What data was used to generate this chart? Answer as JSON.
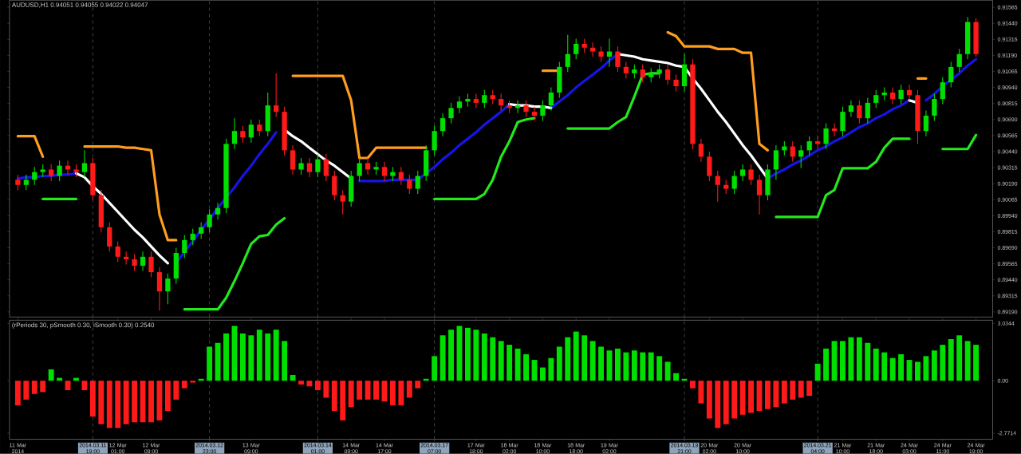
{
  "chart_data": [
    {
      "type": "candlestick",
      "title": "AUDUSD,H1 0.94051 0.94055 0.94022 0.94047",
      "categories": [
        "11 Mar 2014",
        null,
        null,
        null,
        null,
        null,
        null,
        null,
        null,
        "2014.03.11 19:00",
        null,
        null,
        "12 Mar 01:00",
        null,
        null,
        null,
        "12 Mar 09:00",
        null,
        null,
        null,
        null,
        null,
        null,
        "2014.03.12 23:00",
        null,
        null,
        null,
        null,
        "13 Mar 09:00",
        null,
        null,
        null,
        null,
        null,
        null,
        null,
        "2014.03.14 01:00",
        null,
        null,
        null,
        "14 Mar 09:00",
        null,
        null,
        null,
        "14 Mar 17:00",
        null,
        null,
        null,
        null,
        null,
        "2014.03.17 07:00",
        null,
        null,
        null,
        null,
        "17 Mar 18:00",
        null,
        null,
        null,
        "18 Mar 02:00",
        null,
        null,
        null,
        "18 Mar 10:00",
        null,
        null,
        null,
        "18 Mar 18:00",
        null,
        null,
        null,
        "19 Mar 02:00",
        null,
        null,
        null,
        null,
        null,
        null,
        null,
        null,
        "2014.03.19 21:00",
        null,
        null,
        "20 Mar 02:00",
        null,
        null,
        null,
        "20 Mar 10:00",
        null,
        null,
        null,
        null,
        null,
        null,
        null,
        null,
        "2014.03.21 04:00",
        null,
        null,
        "21 Mar 10:00",
        null,
        null,
        null,
        "21 Mar 18:00",
        null,
        null,
        null,
        "24 Mar 03:00",
        null,
        null,
        null,
        "24 Mar 11:00",
        null,
        null,
        null,
        "24 Mar 19:00"
      ],
      "ohlc": [
        [
          0.9022,
          0.9026,
          0.9014,
          0.9018
        ],
        [
          0.9018,
          0.9026,
          0.9014,
          0.9022
        ],
        [
          0.9022,
          0.9032,
          0.9018,
          0.9028
        ],
        [
          0.9028,
          0.9034,
          0.9024,
          0.903
        ],
        [
          0.903,
          0.9034,
          0.9021,
          0.9025
        ],
        [
          0.9025,
          0.9037,
          0.9021,
          0.9033
        ],
        [
          0.9033,
          0.9037,
          0.9026,
          0.903
        ],
        [
          0.903,
          0.9034,
          0.9024,
          0.9028
        ],
        [
          0.9028,
          0.9045,
          0.9024,
          0.9035
        ],
        [
          0.9035,
          0.9039,
          0.9006,
          0.901
        ],
        [
          0.901,
          0.9014,
          0.8981,
          0.8985
        ],
        [
          0.8985,
          0.8989,
          0.8966,
          0.897
        ],
        [
          0.897,
          0.8974,
          0.8958,
          0.8962
        ],
        [
          0.8962,
          0.8966,
          0.8956,
          0.896
        ],
        [
          0.896,
          0.8964,
          0.8951,
          0.8955
        ],
        [
          0.8955,
          0.8966,
          0.8951,
          0.8962
        ],
        [
          0.8962,
          0.8966,
          0.8946,
          0.895
        ],
        [
          0.895,
          0.8954,
          0.892,
          0.8935
        ],
        [
          0.8935,
          0.8949,
          0.8925,
          0.8945
        ],
        [
          0.8945,
          0.8969,
          0.8941,
          0.8965
        ],
        [
          0.8965,
          0.8979,
          0.8961,
          0.8975
        ],
        [
          0.8975,
          0.8984,
          0.8971,
          0.898
        ],
        [
          0.898,
          0.8989,
          0.8976,
          0.8985
        ],
        [
          0.8985,
          0.8999,
          0.8981,
          0.8995
        ],
        [
          0.8995,
          0.9004,
          0.8991,
          0.9
        ],
        [
          0.9,
          0.9054,
          0.8996,
          0.905
        ],
        [
          0.905,
          0.907,
          0.9046,
          0.906
        ],
        [
          0.906,
          0.9064,
          0.9051,
          0.9055
        ],
        [
          0.9055,
          0.9069,
          0.9051,
          0.9065
        ],
        [
          0.9065,
          0.9069,
          0.9056,
          0.906
        ],
        [
          0.906,
          0.909,
          0.9056,
          0.908
        ],
        [
          0.908,
          0.9105,
          0.9071,
          0.9075
        ],
        [
          0.9075,
          0.9079,
          0.9041,
          0.9045
        ],
        [
          0.9045,
          0.9049,
          0.9026,
          0.903
        ],
        [
          0.903,
          0.9039,
          0.9026,
          0.9035
        ],
        [
          0.9035,
          0.9039,
          0.9024,
          0.9028
        ],
        [
          0.9028,
          0.9042,
          0.9024,
          0.9038
        ],
        [
          0.9038,
          0.9042,
          0.9021,
          0.9025
        ],
        [
          0.9025,
          0.9029,
          0.9006,
          0.901
        ],
        [
          0.901,
          0.9014,
          0.8995,
          0.9005
        ],
        [
          0.9005,
          0.9029,
          0.9001,
          0.9025
        ],
        [
          0.9025,
          0.9039,
          0.9021,
          0.9035
        ],
        [
          0.9035,
          0.9039,
          0.9026,
          0.903
        ],
        [
          0.903,
          0.9036,
          0.9026,
          0.9032
        ],
        [
          0.9032,
          0.9036,
          0.9021,
          0.9025
        ],
        [
          0.9025,
          0.9032,
          0.9021,
          0.9028
        ],
        [
          0.9028,
          0.9032,
          0.9018,
          0.9022
        ],
        [
          0.9022,
          0.9026,
          0.9011,
          0.9015
        ],
        [
          0.9015,
          0.9029,
          0.9011,
          0.9025
        ],
        [
          0.9025,
          0.9049,
          0.9021,
          0.9045
        ],
        [
          0.9045,
          0.9064,
          0.9041,
          0.906
        ],
        [
          0.906,
          0.9074,
          0.9056,
          0.907
        ],
        [
          0.907,
          0.9082,
          0.9066,
          0.9078
        ],
        [
          0.9078,
          0.9087,
          0.9074,
          0.9083
        ],
        [
          0.9083,
          0.9089,
          0.9079,
          0.9085
        ],
        [
          0.9085,
          0.9089,
          0.9078,
          0.9082
        ],
        [
          0.9082,
          0.9092,
          0.9078,
          0.9088
        ],
        [
          0.9088,
          0.9092,
          0.9081,
          0.9085
        ],
        [
          0.9085,
          0.9089,
          0.9076,
          0.908
        ],
        [
          0.908,
          0.9084,
          0.9074,
          0.9078
        ],
        [
          0.9078,
          0.9084,
          0.9074,
          0.908
        ],
        [
          0.908,
          0.9084,
          0.9071,
          0.9075
        ],
        [
          0.9075,
          0.9079,
          0.9068,
          0.9072
        ],
        [
          0.9072,
          0.9084,
          0.9068,
          0.908
        ],
        [
          0.908,
          0.9094,
          0.9076,
          0.909
        ],
        [
          0.909,
          0.9114,
          0.9086,
          0.911
        ],
        [
          0.911,
          0.9135,
          0.9106,
          0.912
        ],
        [
          0.912,
          0.9132,
          0.9116,
          0.9128
        ],
        [
          0.9128,
          0.9132,
          0.9121,
          0.9125
        ],
        [
          0.9125,
          0.9129,
          0.9118,
          0.9122
        ],
        [
          0.9122,
          0.9126,
          0.9114,
          0.9118
        ],
        [
          0.9118,
          0.9132,
          0.911,
          0.9122
        ],
        [
          0.9122,
          0.9126,
          0.9106,
          0.911
        ],
        [
          0.911,
          0.9114,
          0.9101,
          0.9105
        ],
        [
          0.9105,
          0.9112,
          0.9101,
          0.9108
        ],
        [
          0.9108,
          0.9112,
          0.9098,
          0.9102
        ],
        [
          0.9102,
          0.9109,
          0.9098,
          0.9105
        ],
        [
          0.9105,
          0.9112,
          0.9101,
          0.9108
        ],
        [
          0.9108,
          0.9112,
          0.9096,
          0.91
        ],
        [
          0.91,
          0.9104,
          0.9091,
          0.9095
        ],
        [
          0.9095,
          0.912,
          0.9091,
          0.9112
        ],
        [
          0.9112,
          0.9116,
          0.9046,
          0.905
        ],
        [
          0.905,
          0.9054,
          0.9036,
          0.904
        ],
        [
          0.904,
          0.9044,
          0.9021,
          0.9025
        ],
        [
          0.9025,
          0.9029,
          0.9005,
          0.9018
        ],
        [
          0.9018,
          0.9022,
          0.9011,
          0.9015
        ],
        [
          0.9015,
          0.9029,
          0.9011,
          0.9025
        ],
        [
          0.9025,
          0.9034,
          0.9021,
          0.903
        ],
        [
          0.903,
          0.9034,
          0.9018,
          0.9022
        ],
        [
          0.9022,
          0.9026,
          0.8995,
          0.901
        ],
        [
          0.901,
          0.9034,
          0.9006,
          0.903
        ],
        [
          0.903,
          0.9049,
          0.9022,
          0.9045
        ],
        [
          0.9045,
          0.9052,
          0.9041,
          0.9048
        ],
        [
          0.9048,
          0.9052,
          0.9036,
          0.904
        ],
        [
          0.904,
          0.9049,
          0.9031,
          0.9045
        ],
        [
          0.9045,
          0.9056,
          0.9041,
          0.9052
        ],
        [
          0.9052,
          0.9056,
          0.9046,
          0.905
        ],
        [
          0.905,
          0.9066,
          0.9046,
          0.9062
        ],
        [
          0.9062,
          0.9066,
          0.9056,
          0.906
        ],
        [
          0.906,
          0.9079,
          0.9056,
          0.9075
        ],
        [
          0.9075,
          0.9084,
          0.9071,
          0.908
        ],
        [
          0.908,
          0.9084,
          0.9066,
          0.907
        ],
        [
          0.907,
          0.9086,
          0.9066,
          0.9082
        ],
        [
          0.9082,
          0.9092,
          0.9078,
          0.9088
        ],
        [
          0.9088,
          0.9094,
          0.9084,
          0.909
        ],
        [
          0.909,
          0.9094,
          0.9081,
          0.9085
        ],
        [
          0.9085,
          0.9096,
          0.9081,
          0.9092
        ],
        [
          0.9092,
          0.9096,
          0.9084,
          0.9088
        ],
        [
          0.9088,
          0.9092,
          0.905,
          0.906
        ],
        [
          0.906,
          0.9076,
          0.9056,
          0.9072
        ],
        [
          0.9072,
          0.9089,
          0.9068,
          0.9085
        ],
        [
          0.9085,
          0.9102,
          0.9081,
          0.9098
        ],
        [
          0.9098,
          0.9114,
          0.9094,
          0.911
        ],
        [
          0.911,
          0.9124,
          0.9106,
          0.912
        ],
        [
          0.912,
          0.9149,
          0.9116,
          0.9145
        ],
        [
          0.9145,
          0.9148,
          0.9118,
          0.912
        ]
      ],
      "colors": [
        "#ff1a1a",
        "#00e000",
        "#00e000",
        "#00e000",
        "#ff1a1a",
        "#00e000",
        "#ff1a1a",
        "#ff1a1a",
        "#00e000",
        "#ff1a1a",
        "#ff1a1a",
        "#ff1a1a",
        "#ff1a1a",
        "#ff1a1a",
        "#ff1a1a",
        "#00e000",
        "#ff1a1a",
        "#ff1a1a",
        "#00e000",
        "#00e000",
        "#00e000",
        "#00e000",
        "#00e000",
        "#00e000",
        "#00e000",
        "#00e000",
        "#00e000",
        "#ff1a1a",
        "#00e000",
        "#ff1a1a",
        "#00e000",
        "#ff1a1a",
        "#ff1a1a",
        "#ff1a1a",
        "#00e000",
        "#ff1a1a",
        "#00e000",
        "#ff1a1a",
        "#ff1a1a",
        "#ff1a1a",
        "#00e000",
        "#00e000",
        "#ff1a1a",
        "#00e000",
        "#ff1a1a",
        "#00e000",
        "#ff1a1a",
        "#ff1a1a",
        "#00e000",
        "#00e000",
        "#00e000",
        "#00e000",
        "#00e000",
        "#00e000",
        "#00e000",
        "#ff1a1a",
        "#00e000",
        "#ff1a1a",
        "#ff1a1a",
        "#ff1a1a",
        "#00e000",
        "#ff1a1a",
        "#ff1a1a",
        "#00e000",
        "#00e000",
        "#00e000",
        "#00e000",
        "#00e000",
        "#ff1a1a",
        "#ff1a1a",
        "#ff1a1a",
        "#00e000",
        "#ff1a1a",
        "#ff1a1a",
        "#00e000",
        "#ff1a1a",
        "#00e000",
        "#00e000",
        "#ff1a1a",
        "#ff1a1a",
        "#00e000",
        "#ff1a1a",
        "#ff1a1a",
        "#ff1a1a",
        "#ff1a1a",
        "#ff1a1a",
        "#00e000",
        "#00e000",
        "#ff1a1a",
        "#ff1a1a",
        "#00e000",
        "#00e000",
        "#00e000",
        "#ff1a1a",
        "#00e000",
        "#00e000",
        "#ff1a1a",
        "#00e000",
        "#ff1a1a",
        "#00e000",
        "#00e000",
        "#ff1a1a",
        "#00e000",
        "#00e000",
        "#00e000",
        "#ff1a1a",
        "#00e000",
        "#ff1a1a",
        "#ff1a1a",
        "#00e000",
        "#00e000",
        "#00e000",
        "#00e000",
        "#00e000",
        "#00e000",
        "#ff1a1a"
      ],
      "series": [
        {
          "type": "line",
          "color": "#ff9d1e",
          "values": [
            0.9056,
            0.9056,
            0.9056,
            0.904,
            null,
            null,
            null,
            null,
            0.9048,
            0.9048,
            0.9048,
            0.9048,
            0.9048,
            0.9047,
            0.9047,
            0.9046,
            0.9045,
            0.8995,
            0.8975,
            0.8975,
            null,
            null,
            null,
            null,
            null,
            null,
            null,
            null,
            null,
            null,
            null,
            null,
            null,
            0.9103,
            0.9103,
            0.9103,
            0.9103,
            0.9103,
            0.9103,
            0.9103,
            0.9084,
            0.9039,
            0.9039,
            0.9047,
            0.9047,
            0.9047,
            0.9047,
            0.9047,
            0.9047,
            0.9047,
            null,
            null,
            null,
            null,
            null,
            null,
            null,
            null,
            null,
            null,
            null,
            null,
            null,
            0.9107,
            0.9107,
            0.9107,
            null,
            null,
            null,
            null,
            null,
            null,
            null,
            null,
            null,
            null,
            null,
            null,
            0.9137,
            0.9134,
            0.9126,
            0.9126,
            0.9126,
            0.9126,
            0.9124,
            0.9124,
            0.9124,
            0.9121,
            0.9121,
            0.905,
            0.9045,
            null,
            null,
            null,
            null,
            null,
            null,
            null,
            null,
            null,
            null,
            null,
            null,
            null,
            null,
            null,
            null,
            null,
            0.9101,
            0.9101,
            null,
            null,
            null,
            null,
            null,
            null
          ]
        },
        {
          "type": "line",
          "color": "#22e81c",
          "values": [
            null,
            null,
            null,
            0.9007,
            0.9007,
            0.9007,
            0.9007,
            0.9007,
            null,
            null,
            null,
            null,
            null,
            null,
            null,
            null,
            null,
            null,
            null,
            null,
            0.8921,
            0.8921,
            0.8921,
            0.8921,
            0.8921,
            0.893,
            0.8943,
            0.8957,
            0.8972,
            0.8978,
            0.8979,
            0.8987,
            0.8992,
            null,
            null,
            null,
            null,
            null,
            null,
            null,
            null,
            null,
            null,
            null,
            null,
            null,
            null,
            null,
            null,
            null,
            0.9007,
            0.9007,
            0.9007,
            0.9007,
            0.9007,
            0.9007,
            0.9011,
            0.9022,
            0.904,
            0.9052,
            0.9067,
            0.9069,
            0.907,
            null,
            null,
            null,
            0.9062,
            0.9062,
            0.9062,
            0.9062,
            0.9062,
            0.9062,
            0.9067,
            0.9071,
            0.9087,
            0.9104,
            0.9105,
            0.9105,
            null,
            null,
            null,
            null,
            null,
            null,
            null,
            null,
            null,
            null,
            null,
            null,
            null,
            0.8993,
            0.8993,
            0.8993,
            0.8993,
            0.8993,
            0.8993,
            0.901,
            0.9014,
            0.9031,
            0.9031,
            0.9031,
            0.9031,
            0.9036,
            0.9047,
            0.9054,
            0.9054,
            0.9054,
            null,
            null,
            null,
            0.9046,
            0.9046,
            0.9046,
            0.9046,
            0.9057
          ]
        },
        {
          "type": "line",
          "color": "#1515e6",
          "values": [
            0.9023,
            0.9024,
            0.9024,
            0.9025,
            0.9025,
            0.9026,
            0.9026,
            0.9027,
            null,
            null,
            null,
            null,
            null,
            null,
            null,
            null,
            null,
            null,
            null,
            0.8957,
            0.8966,
            0.8974,
            0.8983,
            0.8991,
            0.9,
            0.9008,
            0.9016,
            0.9025,
            0.9033,
            0.9042,
            0.905,
            0.9059,
            null,
            null,
            null,
            null,
            null,
            null,
            null,
            null,
            null,
            0.9021,
            0.9021,
            0.9021,
            0.9021,
            0.9022,
            0.9022,
            0.9022,
            0.9022,
            0.9027,
            0.9032,
            0.9038,
            0.9043,
            0.9049,
            0.9054,
            0.9059,
            0.9065,
            0.907,
            0.9075,
            0.9081,
            null,
            null,
            null,
            null,
            0.9078,
            0.9083,
            0.9088,
            0.9094,
            0.9099,
            0.9104,
            0.9109,
            0.9115,
            0.912,
            null,
            null,
            null,
            null,
            null,
            null,
            null,
            null,
            null,
            null,
            null,
            null,
            null,
            null,
            null,
            null,
            null,
            0.9023,
            0.9027,
            0.903,
            0.9034,
            0.9037,
            0.9041,
            0.9045,
            0.9048,
            0.9052,
            0.9055,
            0.9059,
            0.9063,
            0.9066,
            0.907,
            0.9073,
            0.9077,
            0.908,
            0.9084,
            null,
            0.9084,
            0.9089,
            0.9095,
            0.91,
            0.9105,
            0.9111,
            0.9116
          ]
        },
        {
          "type": "line",
          "color": "#ffffff",
          "values": [
            null,
            null,
            null,
            null,
            null,
            null,
            null,
            0.9027,
            0.9024,
            0.9017,
            0.9011,
            0.9004,
            0.8997,
            0.899,
            0.8983,
            0.8977,
            0.897,
            0.8963,
            0.8957,
            null,
            null,
            null,
            null,
            null,
            null,
            null,
            null,
            null,
            null,
            null,
            null,
            null,
            0.9061,
            0.9056,
            0.9052,
            0.9047,
            0.9042,
            0.9037,
            0.9033,
            0.9028,
            0.9023,
            null,
            null,
            null,
            null,
            null,
            null,
            null,
            null,
            null,
            null,
            null,
            null,
            null,
            null,
            null,
            null,
            null,
            null,
            0.9081,
            0.908,
            0.908,
            0.9079,
            0.9079,
            0.9078,
            null,
            null,
            null,
            null,
            null,
            null,
            null,
            0.912,
            0.9119,
            0.9118,
            0.9116,
            0.9115,
            0.9114,
            0.9113,
            0.9111,
            0.911,
            0.9101,
            0.9093,
            0.9084,
            0.9075,
            0.9067,
            0.9058,
            0.9049,
            0.9041,
            0.9032,
            0.9023,
            null,
            null,
            null,
            null,
            null,
            null,
            null,
            null,
            null,
            null,
            null,
            null,
            null,
            null,
            null,
            null,
            0.9084,
            0.9082,
            null,
            null,
            null,
            null,
            null,
            null,
            null
          ]
        }
      ],
      "ylim": [
        0.8915,
        0.9162
      ],
      "yticks": [
        {
          "value": 0.91565,
          "label": "0.91565"
        },
        {
          "value": 0.9144,
          "label": "0.91440"
        },
        {
          "value": 0.91315,
          "label": "0.91315"
        },
        {
          "value": 0.9119,
          "label": "0.91190"
        },
        {
          "value": 0.91065,
          "label": "0.91065"
        },
        {
          "value": 0.9094,
          "label": "0.90940"
        },
        {
          "value": 0.90815,
          "label": "0.90815"
        },
        {
          "value": 0.9069,
          "label": "0.90690"
        },
        {
          "value": 0.90565,
          "label": "0.90565"
        },
        {
          "value": 0.9044,
          "label": "0.90440"
        },
        {
          "value": 0.90315,
          "label": "0.90315"
        },
        {
          "value": 0.9019,
          "label": "0.90190"
        },
        {
          "value": 0.90065,
          "label": "0.90065"
        },
        {
          "value": 0.8994,
          "label": "0.89940"
        },
        {
          "value": 0.89815,
          "label": "0.89815"
        },
        {
          "value": 0.8969,
          "label": "0.89690"
        },
        {
          "value": 0.89565,
          "label": "0.89565"
        },
        {
          "value": 0.8944,
          "label": "0.89440"
        },
        {
          "value": 0.89315,
          "label": "0.89315"
        },
        {
          "value": 0.8919,
          "label": "0.89190"
        }
      ],
      "tick_labels": "y",
      "ref_lines": [
        {
          "axis": "x",
          "value": "2014.03.11 19:00",
          "color": "#6a7a8c",
          "line_style": "dashed"
        },
        {
          "axis": "x",
          "value": "2014.03.12 23:00",
          "color": "#6a7a8c",
          "line_style": "dashed"
        },
        {
          "axis": "x",
          "value": "2014.03.14 01:00",
          "color": "#6a7a8c",
          "line_style": "dashed"
        },
        {
          "axis": "x",
          "value": "2014.03.17 07:00",
          "color": "#6a7a8c",
          "line_style": "dashed"
        },
        {
          "axis": "x",
          "value": "2014.03.19 21:00",
          "color": "#6a7a8c",
          "line_style": "dashed"
        },
        {
          "axis": "x",
          "value": "2014.03.21 04:00",
          "color": "#6a7a8c",
          "line_style": "dashed"
        }
      ]
    },
    {
      "type": "bar",
      "title": "(rPeriods 30, pSmooth 0.30, iSmooth 0.30) 0.2540",
      "categories": [
        "11 Mar 2014",
        null,
        null,
        null,
        null,
        null,
        null,
        null,
        null,
        "2014.03.11 19:00",
        null,
        null,
        "12 Mar 01:00",
        null,
        null,
        null,
        "12 Mar 09:00",
        null,
        null,
        null,
        null,
        null,
        null,
        "2014.03.12 23:00",
        null,
        null,
        null,
        null,
        "13 Mar 09:00",
        null,
        null,
        null,
        null,
        null,
        null,
        null,
        "2014.03.14 01:00",
        null,
        null,
        null,
        "14 Mar 09:00",
        null,
        null,
        null,
        "14 Mar 17:00",
        null,
        null,
        null,
        null,
        null,
        "2014.03.17 07:00",
        null,
        null,
        null,
        null,
        "17 Mar 18:00",
        null,
        null,
        null,
        "18 Mar 02:00",
        null,
        null,
        null,
        "18 Mar 10:00",
        null,
        null,
        null,
        "18 Mar 18:00",
        null,
        null,
        null,
        "19 Mar 02:00",
        null,
        null,
        null,
        null,
        null,
        null,
        null,
        null,
        "2014.03.19 21:00",
        null,
        null,
        "20 Mar 02:00",
        null,
        null,
        null,
        "20 Mar 10:00",
        null,
        null,
        null,
        null,
        null,
        null,
        null,
        null,
        "2014.03.21 04:00",
        null,
        null,
        "21 Mar 10:00",
        null,
        null,
        null,
        "21 Mar 18:00",
        null,
        null,
        null,
        "24 Mar 03:00",
        null,
        null,
        null,
        "24 Mar 11:00",
        null,
        null,
        null,
        "24 Mar 19:00"
      ],
      "values": [
        -1.3,
        -1.0,
        -0.7,
        -0.6,
        0.6,
        0.15,
        -0.5,
        0.15,
        -0.5,
        -1.9,
        -2.3,
        -2.5,
        -2.5,
        -2.3,
        -2.2,
        -2.2,
        -2.2,
        -2.1,
        -1.6,
        -1.0,
        -0.4,
        -0.1,
        0.1,
        1.8,
        2.0,
        2.5,
        2.9,
        2.5,
        2.4,
        2.7,
        2.5,
        2.7,
        2.1,
        0.3,
        -0.2,
        -0.3,
        -0.5,
        -0.9,
        -1.6,
        -2.1,
        -1.4,
        -1.0,
        -1.0,
        -1.0,
        -1.1,
        -1.3,
        -1.3,
        -0.9,
        -0.4,
        0.1,
        1.3,
        2.4,
        2.7,
        2.9,
        2.8,
        2.7,
        2.5,
        2.3,
        2.1,
        1.9,
        1.7,
        1.4,
        1.1,
        0.7,
        1.2,
        1.8,
        2.3,
        2.6,
        2.4,
        2.1,
        1.8,
        1.6,
        1.7,
        1.5,
        1.6,
        1.5,
        1.5,
        1.3,
        1.0,
        0.4,
        0.1,
        -0.4,
        -1.2,
        -2.0,
        -2.5,
        -2.3,
        -2.0,
        -1.8,
        -1.7,
        -1.6,
        -1.5,
        -1.4,
        -1.2,
        -1.0,
        -0.9,
        -0.8,
        0.9,
        1.7,
        2.1,
        2.1,
        2.3,
        2.3,
        2.0,
        1.7,
        1.5,
        1.2,
        1.4,
        1.1,
        1.0,
        1.3,
        1.6,
        1.9,
        2.2,
        2.4,
        2.1,
        1.9
      ],
      "colors": [
        "#ff1a1a",
        "#ff1a1a",
        "#ff1a1a",
        "#ff1a1a",
        "#00e000",
        "#00e000",
        "#ff1a1a",
        "#00e000",
        "#ff1a1a",
        "#ff1a1a",
        "#ff1a1a",
        "#ff1a1a",
        "#ff1a1a",
        "#ff1a1a",
        "#ff1a1a",
        "#ff1a1a",
        "#ff1a1a",
        "#ff1a1a",
        "#ff1a1a",
        "#ff1a1a",
        "#ff1a1a",
        "#ff1a1a",
        "#00e000",
        "#00e000",
        "#00e000",
        "#00e000",
        "#00e000",
        "#00e000",
        "#00e000",
        "#00e000",
        "#00e000",
        "#00e000",
        "#00e000",
        "#00e000",
        "#ff1a1a",
        "#ff1a1a",
        "#ff1a1a",
        "#ff1a1a",
        "#ff1a1a",
        "#ff1a1a",
        "#ff1a1a",
        "#ff1a1a",
        "#ff1a1a",
        "#ff1a1a",
        "#ff1a1a",
        "#ff1a1a",
        "#ff1a1a",
        "#ff1a1a",
        "#ff1a1a",
        "#00e000",
        "#00e000",
        "#00e000",
        "#00e000",
        "#00e000",
        "#00e000",
        "#00e000",
        "#00e000",
        "#00e000",
        "#00e000",
        "#00e000",
        "#00e000",
        "#00e000",
        "#00e000",
        "#00e000",
        "#00e000",
        "#00e000",
        "#00e000",
        "#00e000",
        "#00e000",
        "#00e000",
        "#00e000",
        "#00e000",
        "#00e000",
        "#00e000",
        "#00e000",
        "#00e000",
        "#00e000",
        "#00e000",
        "#00e000",
        "#00e000",
        "#00e000",
        "#ff1a1a",
        "#ff1a1a",
        "#ff1a1a",
        "#ff1a1a",
        "#ff1a1a",
        "#ff1a1a",
        "#ff1a1a",
        "#ff1a1a",
        "#ff1a1a",
        "#ff1a1a",
        "#ff1a1a",
        "#ff1a1a",
        "#ff1a1a",
        "#ff1a1a",
        "#ff1a1a",
        "#00e000",
        "#00e000",
        "#00e000",
        "#00e000",
        "#00e000",
        "#00e000",
        "#00e000",
        "#00e000",
        "#00e000",
        "#00e000",
        "#00e000",
        "#00e000",
        "#00e000",
        "#00e000",
        "#00e000",
        "#00e000",
        "#00e000",
        "#00e000",
        "#00e000",
        "#00e000"
      ],
      "ylim": [
        -3.1,
        3.2
      ],
      "yticks": [
        3.0344,
        {
          "value": 0,
          "label": "0.00"
        },
        -2.7714
      ],
      "ref_lines": [
        {
          "axis": "x",
          "value": "2014.03.11 19:00",
          "color": "#6a7a8c",
          "line_style": "dashed"
        },
        {
          "axis": "x",
          "value": "2014.03.12 23:00",
          "color": "#6a7a8c",
          "line_style": "dashed"
        },
        {
          "axis": "x",
          "value": "2014.03.14 01:00",
          "color": "#6a7a8c",
          "line_style": "dashed"
        },
        {
          "axis": "x",
          "value": "2014.03.17 07:00",
          "color": "#6a7a8c",
          "line_style": "dashed"
        },
        {
          "axis": "x",
          "value": "2014.03.19 21:00",
          "color": "#6a7a8c",
          "line_style": "dashed"
        },
        {
          "axis": "x",
          "value": "2014.03.21 04:00",
          "color": "#6a7a8c",
          "line_style": "dashed"
        }
      ]
    }
  ]
}
